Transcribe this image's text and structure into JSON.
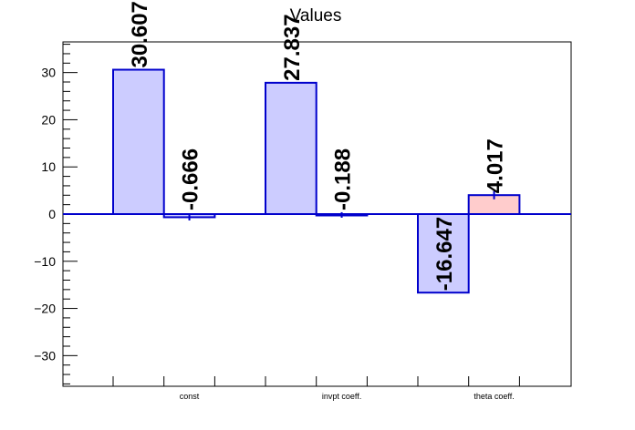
{
  "chart_data": {
    "type": "bar",
    "title": "Values",
    "xlabel": "",
    "ylabel": "",
    "ylim": [
      -36.5,
      36.5
    ],
    "yticks": [
      -30,
      -20,
      -10,
      0,
      10,
      20,
      30
    ],
    "ytick_labels": [
      "−30",
      "−20",
      "−10",
      "0",
      "10",
      "20",
      "30"
    ],
    "categories": [
      "const",
      "invpt coeff.",
      "theta coeff."
    ],
    "series": [
      {
        "values": [
          30.607,
          27.837,
          -16.647
        ],
        "labels": [
          "30.607",
          "27.837",
          "-16.647"
        ],
        "fill": "#ccccff",
        "stroke": "#0000cc",
        "errors": [
          0,
          0,
          0
        ]
      },
      {
        "values": [
          -0.666,
          -0.188,
          4.017
        ],
        "labels": [
          "-0.666",
          "-0.188",
          "4.017"
        ],
        "fills": [
          "#ccccff",
          "#ccccff",
          "#ffcccc"
        ],
        "stroke": "#0000cc",
        "errors": [
          0.3,
          0.2,
          0.5
        ]
      }
    ],
    "grid": false,
    "legend": "none"
  },
  "colors": {
    "bar_fill": "#ccccff",
    "bar_fill_positive_highlight": "#ffcccc",
    "bar_stroke": "#0000cc",
    "zero_line": "#0000cc",
    "frame": "#000000"
  }
}
